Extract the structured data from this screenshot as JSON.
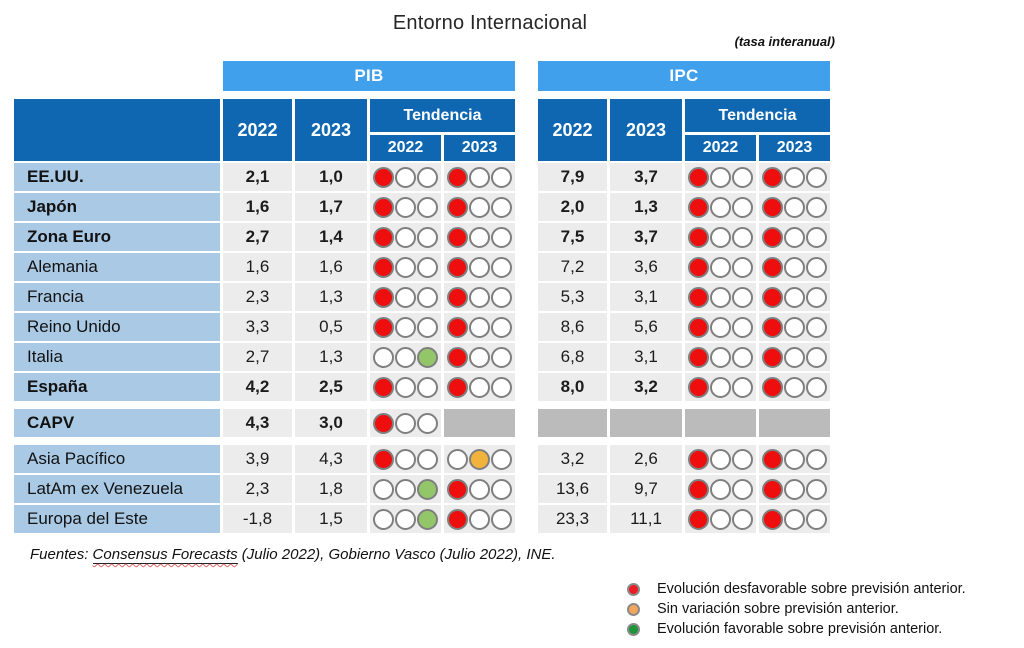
{
  "colors": {
    "group_header": "#41A0EC",
    "column_header": "#0F67B1",
    "row_label_bg": "#A9C9E5",
    "cell_bg": "#ECECEC",
    "gray_block": "#BBBBBB",
    "dot_red": "#EE0E0E",
    "dot_orange": "#F2B33D",
    "dot_green": "#92C669",
    "dot_border": "#7F7F7F"
  },
  "chart_data": {
    "type": "table",
    "title": "Entorno Internacional",
    "subtitle": "(tasa interanual)",
    "groups": {
      "pib": "PIB",
      "ipc": "IPC"
    },
    "columns": {
      "y2022": "2022",
      "y2023": "2023",
      "tendencia": "Tendencia",
      "t2022": "2022",
      "t2023": "2023"
    },
    "rows": [
      {
        "label": "EE.UU.",
        "bold": true,
        "section": 0,
        "pib": {
          "y2022": "2,1",
          "y2023": "1,0",
          "t2022": [
            "red",
            "empty",
            "empty"
          ],
          "t2023": [
            "red",
            "empty",
            "empty"
          ]
        },
        "ipc": {
          "y2022": "7,9",
          "y2023": "3,7",
          "t2022": [
            "red",
            "empty",
            "empty"
          ],
          "t2023": [
            "red",
            "empty",
            "empty"
          ]
        }
      },
      {
        "label": "Japón",
        "bold": true,
        "section": 0,
        "pib": {
          "y2022": "1,6",
          "y2023": "1,7",
          "t2022": [
            "red",
            "empty",
            "empty"
          ],
          "t2023": [
            "red",
            "empty",
            "empty"
          ]
        },
        "ipc": {
          "y2022": "2,0",
          "y2023": "1,3",
          "t2022": [
            "red",
            "empty",
            "empty"
          ],
          "t2023": [
            "red",
            "empty",
            "empty"
          ]
        }
      },
      {
        "label": "Zona Euro",
        "bold": true,
        "section": 0,
        "pib": {
          "y2022": "2,7",
          "y2023": "1,4",
          "t2022": [
            "red",
            "empty",
            "empty"
          ],
          "t2023": [
            "red",
            "empty",
            "empty"
          ]
        },
        "ipc": {
          "y2022": "7,5",
          "y2023": "3,7",
          "t2022": [
            "red",
            "empty",
            "empty"
          ],
          "t2023": [
            "red",
            "empty",
            "empty"
          ]
        }
      },
      {
        "label": "Alemania",
        "bold": false,
        "section": 0,
        "pib": {
          "y2022": "1,6",
          "y2023": "1,6",
          "t2022": [
            "red",
            "empty",
            "empty"
          ],
          "t2023": [
            "red",
            "empty",
            "empty"
          ]
        },
        "ipc": {
          "y2022": "7,2",
          "y2023": "3,6",
          "t2022": [
            "red",
            "empty",
            "empty"
          ],
          "t2023": [
            "red",
            "empty",
            "empty"
          ]
        }
      },
      {
        "label": "Francia",
        "bold": false,
        "section": 0,
        "pib": {
          "y2022": "2,3",
          "y2023": "1,3",
          "t2022": [
            "red",
            "empty",
            "empty"
          ],
          "t2023": [
            "red",
            "empty",
            "empty"
          ]
        },
        "ipc": {
          "y2022": "5,3",
          "y2023": "3,1",
          "t2022": [
            "red",
            "empty",
            "empty"
          ],
          "t2023": [
            "red",
            "empty",
            "empty"
          ]
        }
      },
      {
        "label": "Reino Unido",
        "bold": false,
        "section": 0,
        "pib": {
          "y2022": "3,3",
          "y2023": "0,5",
          "t2022": [
            "red",
            "empty",
            "empty"
          ],
          "t2023": [
            "red",
            "empty",
            "empty"
          ]
        },
        "ipc": {
          "y2022": "8,6",
          "y2023": "5,6",
          "t2022": [
            "red",
            "empty",
            "empty"
          ],
          "t2023": [
            "red",
            "empty",
            "empty"
          ]
        }
      },
      {
        "label": "Italia",
        "bold": false,
        "section": 0,
        "pib": {
          "y2022": "2,7",
          "y2023": "1,3",
          "t2022": [
            "empty",
            "empty",
            "green"
          ],
          "t2023": [
            "red",
            "empty",
            "empty"
          ]
        },
        "ipc": {
          "y2022": "6,8",
          "y2023": "3,1",
          "t2022": [
            "red",
            "empty",
            "empty"
          ],
          "t2023": [
            "red",
            "empty",
            "empty"
          ]
        }
      },
      {
        "label": "España",
        "bold": true,
        "section": 0,
        "pib": {
          "y2022": "4,2",
          "y2023": "2,5",
          "t2022": [
            "red",
            "empty",
            "empty"
          ],
          "t2023": [
            "red",
            "empty",
            "empty"
          ]
        },
        "ipc": {
          "y2022": "8,0",
          "y2023": "3,2",
          "t2022": [
            "red",
            "empty",
            "empty"
          ],
          "t2023": [
            "red",
            "empty",
            "empty"
          ]
        }
      },
      {
        "label": "CAPV",
        "bold": true,
        "section": 1,
        "pib": {
          "y2022": "4,3",
          "y2023": "3,0",
          "t2022": [
            "red",
            "empty",
            "empty"
          ],
          "t2023": null
        },
        "ipc": {
          "y2022": null,
          "y2023": null,
          "t2022": null,
          "t2023": null
        }
      },
      {
        "label": "Asia Pacífico",
        "bold": false,
        "section": 2,
        "pib": {
          "y2022": "3,9",
          "y2023": "4,3",
          "t2022": [
            "red",
            "empty",
            "empty"
          ],
          "t2023": [
            "empty",
            "orange",
            "empty"
          ]
        },
        "ipc": {
          "y2022": "3,2",
          "y2023": "2,6",
          "t2022": [
            "red",
            "empty",
            "empty"
          ],
          "t2023": [
            "red",
            "empty",
            "empty"
          ]
        }
      },
      {
        "label": "LatAm ex Venezuela",
        "bold": false,
        "section": 2,
        "pib": {
          "y2022": "2,3",
          "y2023": "1,8",
          "t2022": [
            "empty",
            "empty",
            "green"
          ],
          "t2023": [
            "red",
            "empty",
            "empty"
          ]
        },
        "ipc": {
          "y2022": "13,6",
          "y2023": "9,7",
          "t2022": [
            "red",
            "empty",
            "empty"
          ],
          "t2023": [
            "red",
            "empty",
            "empty"
          ]
        }
      },
      {
        "label": "Europa del Este",
        "bold": false,
        "section": 2,
        "pib": {
          "y2022": "-1,8",
          "y2023": "1,5",
          "t2022": [
            "empty",
            "empty",
            "green"
          ],
          "t2023": [
            "red",
            "empty",
            "empty"
          ]
        },
        "ipc": {
          "y2022": "23,3",
          "y2023": "11,1",
          "t2022": [
            "red",
            "empty",
            "empty"
          ],
          "t2023": [
            "red",
            "empty",
            "empty"
          ]
        }
      }
    ],
    "sources": {
      "prefix": "Fuentes: ",
      "underlined": "Consensus Forecasts",
      "suffix": " (Julio 2022), Gobierno Vasco (Julio 2022), INE."
    },
    "legend": [
      {
        "name": "red",
        "color": "#ED1C24",
        "label": "Evolución desfavorable sobre previsión anterior."
      },
      {
        "name": "orange",
        "color": "#F4A55C",
        "label": "Sin variación sobre previsión anterior."
      },
      {
        "name": "green",
        "color": "#1D9538",
        "label": "Evolución favorable sobre previsión anterior."
      }
    ]
  }
}
